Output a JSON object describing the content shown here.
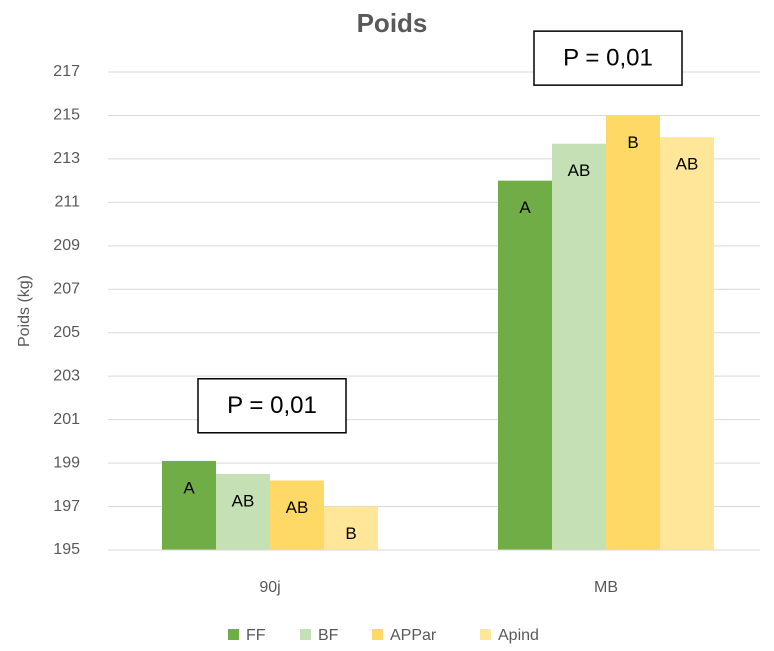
{
  "chart_data": {
    "type": "bar",
    "title": "Poids",
    "y_label": "Poids (kg)",
    "categories": [
      "90j",
      "MB"
    ],
    "series": [
      {
        "name": "FF",
        "color": "#70ad47",
        "values": [
          199.1,
          212.0
        ],
        "value_labels": [
          "A",
          "A"
        ]
      },
      {
        "name": "BF",
        "color": "#c5e0b4",
        "values": [
          198.5,
          213.7
        ],
        "value_labels": [
          "AB",
          "AB"
        ]
      },
      {
        "name": "APPar",
        "color": "#ffd966",
        "values": [
          198.2,
          215.0
        ],
        "value_labels": [
          "AB",
          "B"
        ]
      },
      {
        "name": "Apind",
        "color": "#ffe699",
        "values": [
          197.0,
          214.0
        ],
        "value_labels": [
          "B",
          "AB"
        ]
      }
    ],
    "annotations": [
      "P = 0,01",
      "P = 0,01"
    ],
    "ylim": [
      195,
      217
    ],
    "yticks": [
      195,
      197,
      199,
      201,
      203,
      205,
      207,
      209,
      211,
      213,
      215,
      217
    ],
    "grid": true,
    "legend": "bottom"
  }
}
